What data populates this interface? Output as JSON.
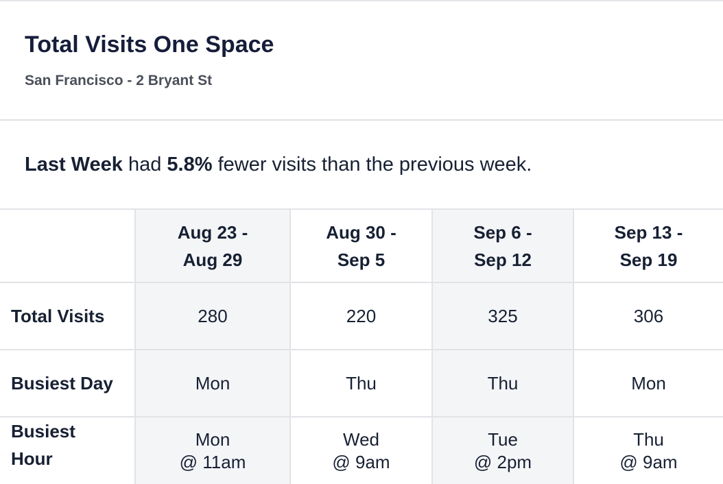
{
  "header": {
    "title": "Total Visits One Space",
    "subtitle": "San Francisco - 2 Bryant St"
  },
  "summary": {
    "period": "Last Week",
    "connector": " had ",
    "percent": "5.8%",
    "rest": " fewer visits than the previous week."
  },
  "table": {
    "columns": [
      {
        "line1": "Aug 23 -",
        "line2": "Aug 29"
      },
      {
        "line1": "Aug 30 -",
        "line2": "Sep 5"
      },
      {
        "line1": "Sep 6 -",
        "line2": "Sep 12"
      },
      {
        "line1": "Sep 13 -",
        "line2": "Sep 19"
      }
    ],
    "rows": {
      "total_visits": {
        "label": "Total Visits",
        "values": [
          "280",
          "220",
          "325",
          "306"
        ]
      },
      "busiest_day": {
        "label": "Busiest Day",
        "values": [
          "Mon",
          "Thu",
          "Thu",
          "Mon"
        ]
      },
      "busiest_hour": {
        "label_line1": "Busiest",
        "label_line2": "Hour",
        "values": [
          {
            "day": "Mon",
            "time": "@ 11am"
          },
          {
            "day": "Wed",
            "time": "@ 9am"
          },
          {
            "day": "Tue",
            "time": "@ 2pm"
          },
          {
            "day": "Thu",
            "time": "@ 9am"
          }
        ]
      }
    }
  }
}
